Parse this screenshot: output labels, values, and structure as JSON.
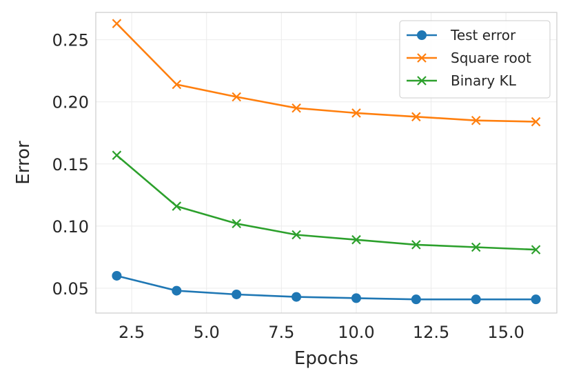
{
  "chart_data": {
    "type": "line",
    "title": "",
    "xlabel": "Epochs",
    "ylabel": "Error",
    "xlim": [
      1.3,
      16.7
    ],
    "ylim": [
      0.03,
      0.272
    ],
    "grid": true,
    "legend_position": "top-right",
    "xticks": [
      2.5,
      5.0,
      7.5,
      10.0,
      12.5,
      15.0
    ],
    "xtick_labels": [
      "2.5",
      "5.0",
      "7.5",
      "10.0",
      "12.5",
      "15.0"
    ],
    "yticks": [
      0.05,
      0.1,
      0.15,
      0.2,
      0.25
    ],
    "ytick_labels": [
      "0.05",
      "0.10",
      "0.15",
      "0.20",
      "0.25"
    ],
    "x": [
      2,
      4,
      6,
      8,
      10,
      12,
      14,
      16
    ],
    "series": [
      {
        "name": "Test error",
        "color": "#1f77b4",
        "marker": "circle",
        "values": [
          0.06,
          0.048,
          0.045,
          0.043,
          0.042,
          0.041,
          0.041,
          0.041
        ]
      },
      {
        "name": "Square root",
        "color": "#ff7f0e",
        "marker": "x",
        "values": [
          0.263,
          0.214,
          0.204,
          0.195,
          0.191,
          0.188,
          0.185,
          0.184
        ]
      },
      {
        "name": "Binary KL",
        "color": "#2ca02c",
        "marker": "x",
        "values": [
          0.157,
          0.116,
          0.102,
          0.093,
          0.089,
          0.085,
          0.083,
          0.081
        ]
      }
    ]
  }
}
